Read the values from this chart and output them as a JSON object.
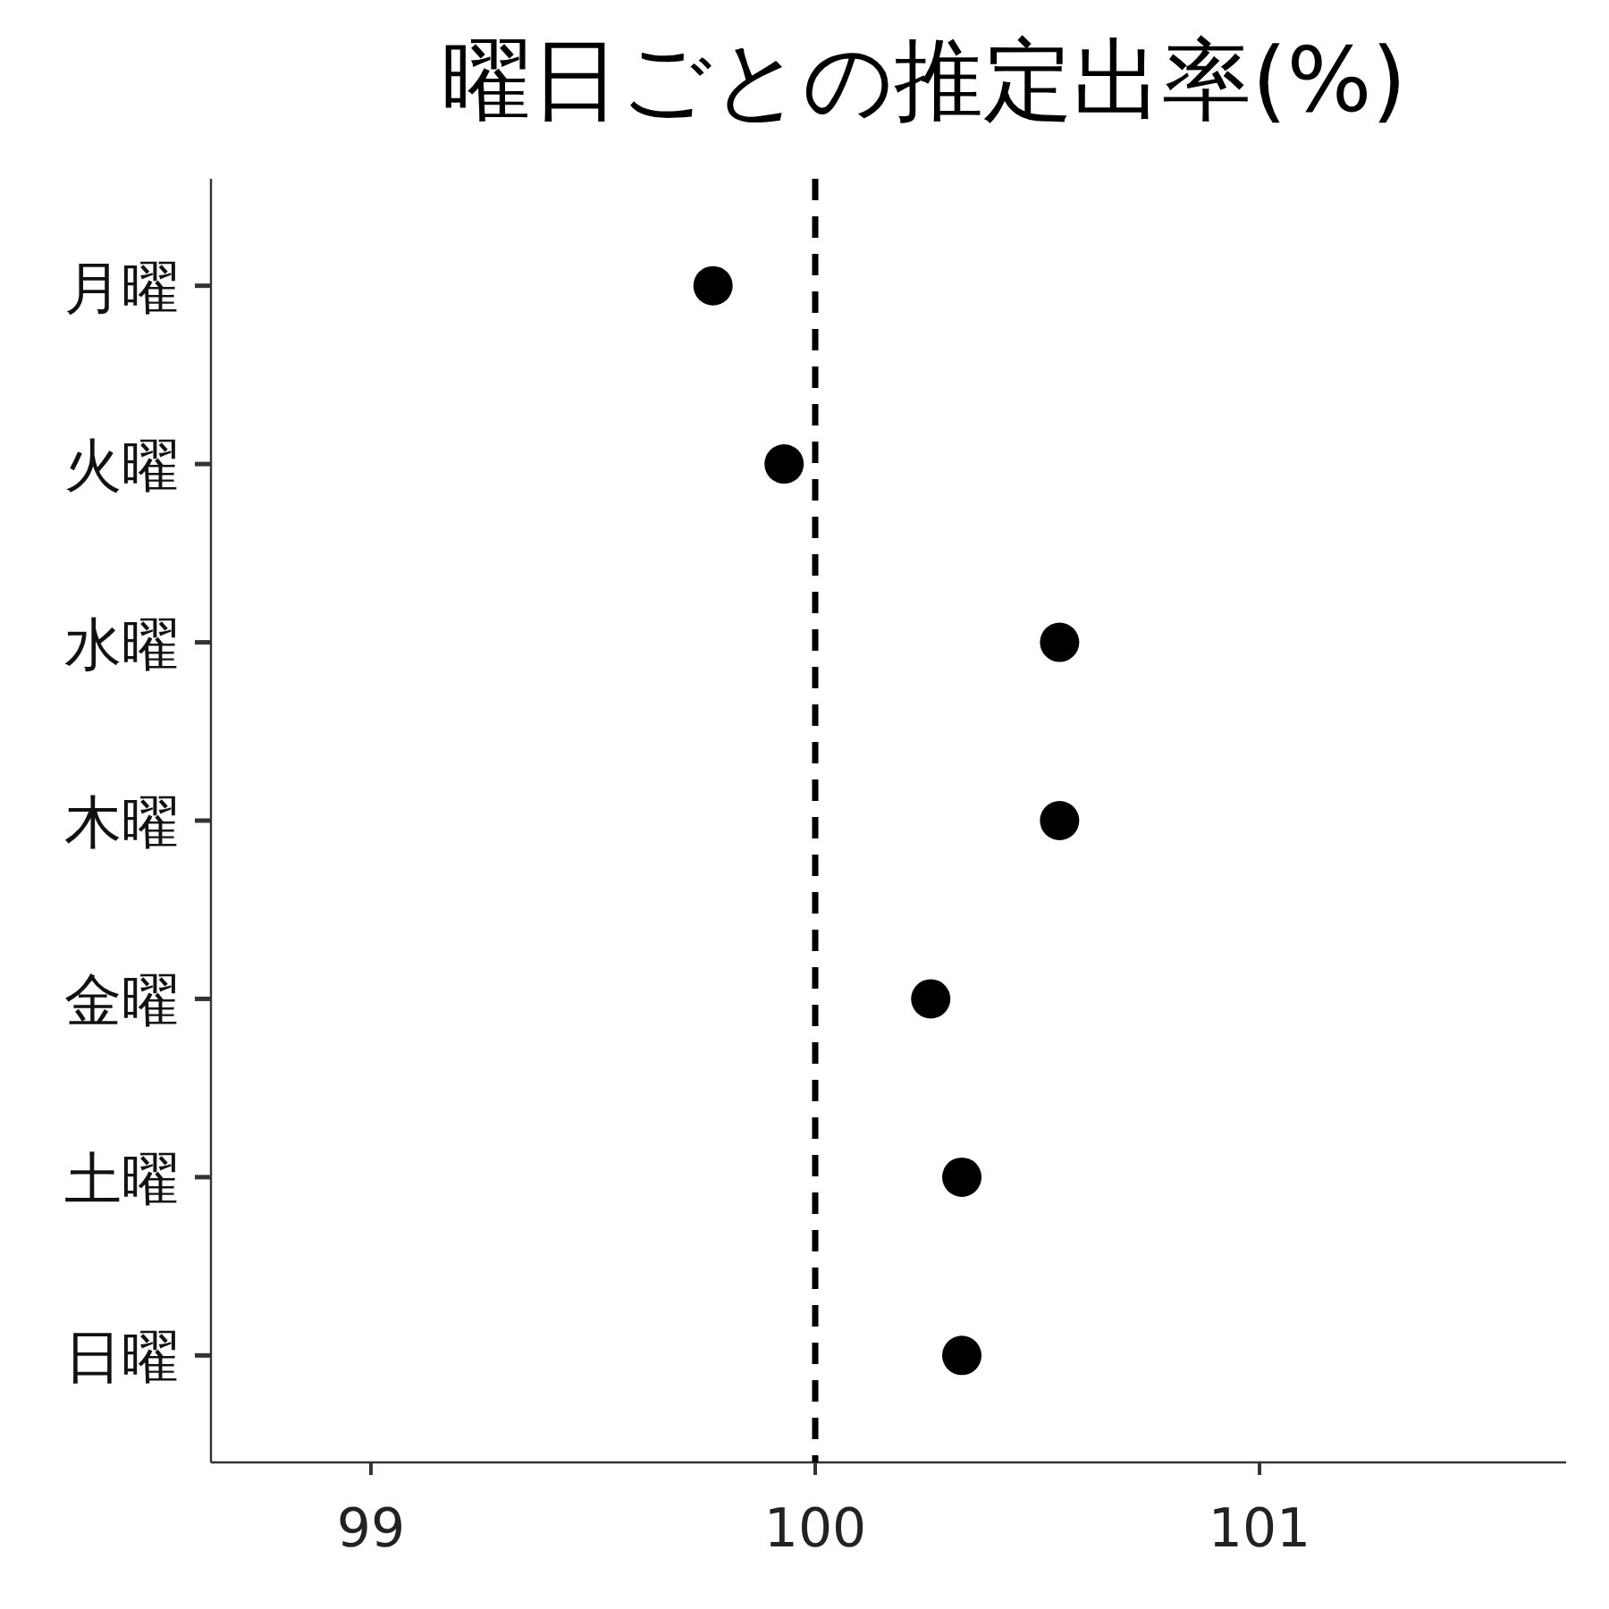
{
  "chart_data": {
    "type": "scatter",
    "title": "曜日ごとの推定出率(%)",
    "orientation": "horizontal",
    "categories": [
      "月曜",
      "火曜",
      "水曜",
      "木曜",
      "金曜",
      "土曜",
      "日曜"
    ],
    "values": [
      99.77,
      99.93,
      100.55,
      100.55,
      100.26,
      100.33,
      100.33
    ],
    "color": "#000000",
    "marker": "circle",
    "xlim": [
      98.64,
      101.69
    ],
    "xticks": [
      99,
      100,
      101
    ],
    "ref_lines": [
      {
        "axis": "x",
        "value": 100,
        "line_style": "dashed",
        "color": "#000000"
      }
    ],
    "grid": false
  }
}
